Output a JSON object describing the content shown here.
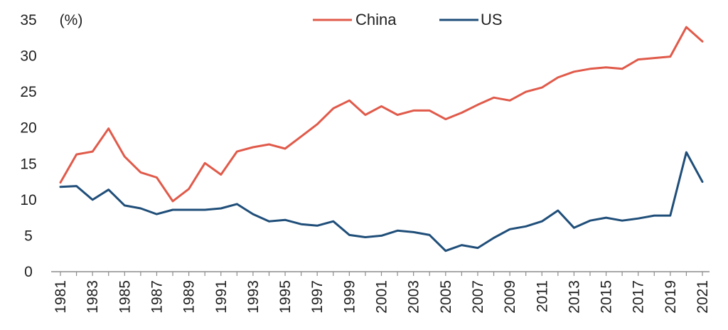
{
  "chart_data": {
    "type": "line",
    "title": "",
    "unit_label": "(%)",
    "xlabel": "",
    "ylabel": "",
    "ylim": [
      0,
      35
    ],
    "xlim": [
      1981,
      2021
    ],
    "yticks": [
      0,
      5,
      10,
      15,
      20,
      25,
      30,
      35
    ],
    "xticks": [
      1981,
      1983,
      1985,
      1987,
      1989,
      1991,
      1993,
      1995,
      1997,
      1999,
      2001,
      2003,
      2005,
      2007,
      2009,
      2011,
      2013,
      2015,
      2017,
      2019,
      2021
    ],
    "grid": false,
    "legend_position": "top-center",
    "x": [
      1981,
      1982,
      1983,
      1984,
      1985,
      1986,
      1987,
      1988,
      1989,
      1990,
      1991,
      1992,
      1993,
      1994,
      1995,
      1996,
      1997,
      1998,
      1999,
      2000,
      2001,
      2002,
      2003,
      2004,
      2005,
      2006,
      2007,
      2008,
      2009,
      2010,
      2011,
      2012,
      2013,
      2014,
      2015,
      2016,
      2017,
      2018,
      2019,
      2020,
      2021
    ],
    "series": [
      {
        "name": "China",
        "color": "#e05a4a",
        "values": [
          12.4,
          16.3,
          16.7,
          19.9,
          16.0,
          13.8,
          13.1,
          9.8,
          11.5,
          15.1,
          13.5,
          16.7,
          17.3,
          17.7,
          17.1,
          18.8,
          20.5,
          22.7,
          23.8,
          21.8,
          23.0,
          21.8,
          22.4,
          22.4,
          21.2,
          22.1,
          23.2,
          24.2,
          23.8,
          25.0,
          25.6,
          27.0,
          27.8,
          28.2,
          28.4,
          28.2,
          29.5,
          29.7,
          29.9,
          34.0,
          32.0
        ]
      },
      {
        "name": "US",
        "color": "#1f4e79",
        "values": [
          11.8,
          11.9,
          10.0,
          11.4,
          9.2,
          8.8,
          8.0,
          8.6,
          8.6,
          8.6,
          8.8,
          9.4,
          8.0,
          7.0,
          7.2,
          6.6,
          6.4,
          7.0,
          5.1,
          4.8,
          5.0,
          5.7,
          5.5,
          5.1,
          2.9,
          3.7,
          3.3,
          4.7,
          5.9,
          6.3,
          7.0,
          8.5,
          6.1,
          7.1,
          7.5,
          7.1,
          7.4,
          7.8,
          7.8,
          16.6,
          12.5
        ]
      }
    ]
  }
}
